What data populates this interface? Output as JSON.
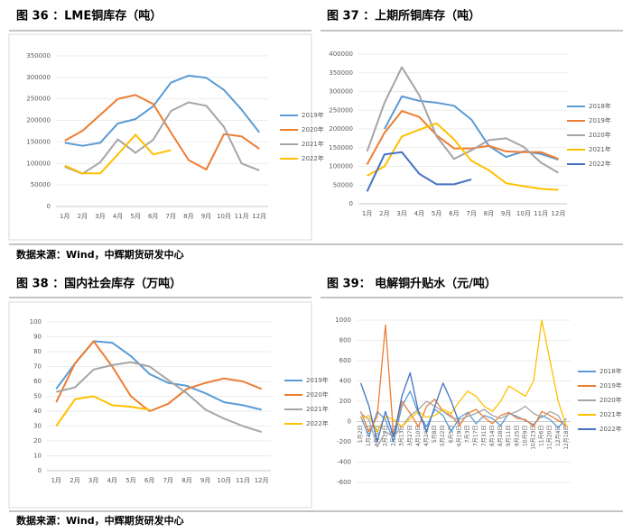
{
  "chart_data": [
    {
      "type": "line",
      "title": "图 36 ：LME铜库存（吨）",
      "categories": [
        "1月",
        "2月",
        "3月",
        "4月",
        "5月",
        "6月",
        "7月",
        "8月",
        "9月",
        "10月",
        "11月",
        "12月"
      ],
      "series": [
        {
          "name": "2019年",
          "color": "#5b9bd5",
          "values": [
            148000,
            141000,
            148000,
            193000,
            203000,
            233000,
            288000,
            304000,
            299000,
            271000,
            225000,
            172000
          ]
        },
        {
          "name": "2020年",
          "color": "#ed7d31",
          "values": [
            153000,
            176000,
            213000,
            250000,
            259000,
            238000,
            172000,
            108000,
            86000,
            168000,
            163000,
            134000
          ]
        },
        {
          "name": "2021年",
          "color": "#a5a5a5",
          "values": [
            92000,
            76000,
            103000,
            156000,
            125000,
            155000,
            222000,
            242000,
            234000,
            185000,
            100000,
            84000
          ]
        },
        {
          "name": "2022年",
          "color": "#ffc000",
          "values": [
            95000,
            77000,
            77000,
            121000,
            167000,
            121000,
            131000,
            null,
            null,
            null,
            null,
            null
          ]
        }
      ],
      "ylim": [
        0,
        350000
      ],
      "yticks": [
        0,
        50000,
        100000,
        150000,
        200000,
        250000,
        300000,
        350000
      ],
      "legend": "right"
    },
    {
      "type": "line",
      "title": "图 37 ：上期所铜库存（吨）",
      "categories": [
        "1月",
        "2月",
        "3月",
        "4月",
        "5月",
        "6月",
        "7月",
        "8月",
        "9月",
        "10月",
        "11月",
        "12月"
      ],
      "series": [
        {
          "name": "2018年",
          "color": "#5b9bd5",
          "values": [
            null,
            200000,
            287000,
            275000,
            270000,
            262000,
            225000,
            155000,
            125000,
            140000,
            133000,
            118000
          ]
        },
        {
          "name": "2019年",
          "color": "#ed7d31",
          "values": [
            105000,
            190000,
            248000,
            232000,
            183000,
            148000,
            148000,
            155000,
            140000,
            138000,
            138000,
            120000
          ]
        },
        {
          "name": "2020年",
          "color": "#a5a5a5",
          "values": [
            140000,
            270000,
            365000,
            290000,
            180000,
            120000,
            143000,
            170000,
            175000,
            152000,
            110000,
            83000
          ]
        },
        {
          "name": "2021年",
          "color": "#ffc000",
          "values": [
            75000,
            100000,
            180000,
            198000,
            215000,
            172000,
            115000,
            90000,
            55000,
            47000,
            40000,
            37000
          ]
        },
        {
          "name": "2022年",
          "color": "#4472c4",
          "values": [
            33000,
            132000,
            138000,
            80000,
            52000,
            52000,
            65000,
            null,
            null,
            null,
            null,
            null
          ]
        }
      ],
      "ylim": [
        0,
        400000
      ],
      "yticks": [
        0,
        50000,
        100000,
        150000,
        200000,
        250000,
        300000,
        350000,
        400000
      ],
      "legend": "right"
    },
    {
      "type": "line",
      "title": "图 38 ：国内社会库存（万吨）",
      "categories": [
        "1月",
        "2月",
        "3月",
        "4月",
        "5月",
        "6月",
        "7月",
        "8月",
        "9月",
        "10月",
        "11月",
        "12月"
      ],
      "series": [
        {
          "name": "2019年",
          "color": "#5b9bd5",
          "values": [
            55,
            72,
            87,
            86,
            77,
            65,
            59,
            57,
            52,
            46,
            44,
            41
          ]
        },
        {
          "name": "2020年",
          "color": "#ed7d31",
          "values": [
            46,
            72,
            87,
            70,
            50,
            40,
            45,
            55,
            59,
            62,
            60,
            55
          ]
        },
        {
          "name": "2021年",
          "color": "#a5a5a5",
          "values": [
            53,
            56,
            68,
            71,
            73,
            70,
            61,
            52,
            41,
            35,
            30,
            26
          ]
        },
        {
          "name": "2022年",
          "color": "#ffc000",
          "values": [
            30,
            48,
            50,
            44,
            43,
            41,
            null,
            null,
            null,
            null,
            null,
            null
          ]
        }
      ],
      "ylim": [
        0,
        100
      ],
      "yticks": [
        0,
        10,
        20,
        30,
        40,
        50,
        60,
        70,
        80,
        90,
        100
      ],
      "legend": "right"
    },
    {
      "type": "line",
      "title": "图 39： 电解铜升贴水（元/吨）",
      "categories": [
        "1月2日",
        "1月16日",
        "1月30日",
        "2月13日",
        "2月27日",
        "3月13日",
        "3月27日",
        "4月10日",
        "4月24日",
        "5月8日",
        "5月22日",
        "6月5日",
        "6月19日",
        "7月3日",
        "7月17日",
        "7月31日",
        "8月14日",
        "8月28日",
        "9月11日",
        "9月25日",
        "10月9日",
        "10月23日",
        "11月6日",
        "11月20日",
        "12月4日",
        "12月18日"
      ],
      "series": [
        {
          "name": "2018年",
          "color": "#5b9bd5",
          "values": [
            50,
            -150,
            100,
            20,
            -200,
            150,
            300,
            80,
            -50,
            120,
            60,
            -100,
            40,
            90,
            -20,
            60,
            30,
            -40,
            80,
            50,
            10,
            -30,
            60,
            20,
            -60,
            30
          ]
        },
        {
          "name": "2019年",
          "color": "#ed7d31",
          "values": [
            100,
            -100,
            50,
            950,
            -150,
            200,
            80,
            -50,
            150,
            220,
            100,
            60,
            -40,
            80,
            120,
            40,
            -20,
            60,
            90,
            30,
            20,
            -50,
            100,
            60,
            10,
            -40
          ]
        },
        {
          "name": "2020年",
          "color": "#a5a5a5",
          "values": [
            80,
            20,
            -250,
            -100,
            -150,
            -50,
            60,
            120,
            200,
            150,
            100,
            40,
            20,
            50,
            80,
            120,
            60,
            30,
            70,
            100,
            150,
            80,
            40,
            100,
            60,
            -80
          ]
        },
        {
          "name": "2021年",
          "color": "#ffc000",
          "values": [
            30,
            60,
            -100,
            50,
            20,
            -50,
            30,
            100,
            40,
            60,
            120,
            80,
            200,
            300,
            250,
            150,
            100,
            200,
            350,
            300,
            250,
            400,
            1000,
            600,
            200,
            -50
          ]
        },
        {
          "name": "2022年",
          "color": "#4472c4",
          "values": [
            380,
            150,
            -200,
            100,
            -150,
            250,
            480,
            100,
            -100,
            150,
            380,
            200,
            -20,
            null,
            null,
            null,
            null,
            null,
            null,
            null,
            null,
            null,
            null,
            null,
            null,
            null
          ]
        }
      ],
      "ylim": [
        -600,
        1000
      ],
      "yticks": [
        -600,
        -400,
        -200,
        0,
        200,
        400,
        600,
        800,
        1000
      ],
      "legend": "right"
    }
  ],
  "source_notes": [
    "数据来源：Wind，中辉期货研发中心",
    "数据来源：Wind，中辉期货研发中心"
  ]
}
